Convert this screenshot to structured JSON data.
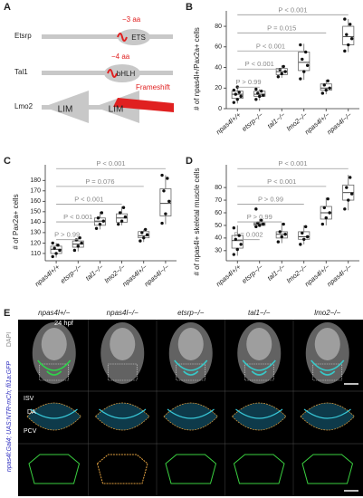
{
  "panel_a": {
    "label": "A",
    "genes": [
      {
        "name": "Etsrp",
        "domains": [
          "ETS"
        ],
        "mutation": "−3 aa"
      },
      {
        "name": "Tal1",
        "domains": [
          "bHLH"
        ],
        "mutation": "−4 aa"
      },
      {
        "name": "Lmo2",
        "domains": [
          "LIM",
          "LIM"
        ],
        "mutation": "Frameshift"
      }
    ]
  },
  "chart_data": [
    {
      "type": "box",
      "panel": "B",
      "y_label": "# of npas4l+/Pax2a+ cells",
      "categories": [
        "npas4l+/+",
        "etsrp−/−",
        "tal1−/−",
        "lmo2−/−",
        "npas4l+/−",
        "npas4l−/−"
      ],
      "boxes": [
        {
          "min": 5,
          "q1": 10,
          "median": 14,
          "q3": 17,
          "max": 22,
          "points": [
            6,
            9,
            12,
            14,
            16,
            18,
            21
          ]
        },
        {
          "min": 8,
          "q1": 12,
          "median": 14,
          "q3": 17,
          "max": 19,
          "points": [
            9,
            12,
            13,
            15,
            17,
            19
          ]
        },
        {
          "min": 30,
          "q1": 33,
          "median": 36,
          "q3": 39,
          "max": 42,
          "points": [
            31,
            34,
            36,
            38,
            41
          ]
        },
        {
          "min": 28,
          "q1": 37,
          "median": 45,
          "q3": 55,
          "max": 63,
          "points": [
            29,
            36,
            42,
            48,
            55,
            62
          ]
        },
        {
          "min": 14,
          "q1": 18,
          "median": 20,
          "q3": 24,
          "max": 28,
          "points": [
            15,
            18,
            20,
            23,
            27
          ]
        },
        {
          "min": 55,
          "q1": 62,
          "median": 70,
          "q3": 80,
          "max": 87,
          "points": [
            56,
            62,
            68,
            72,
            82,
            87
          ]
        }
      ],
      "ylim": [
        0,
        95
      ],
      "yticks": [
        0,
        20,
        40,
        60,
        80
      ],
      "annotations": [
        "P > 0.99",
        "P < 0.001",
        "P < 0.001",
        "P = 0.015",
        "P < 0.001"
      ]
    },
    {
      "type": "box",
      "panel": "C",
      "y_label": "# of Pax2a+ cells",
      "categories": [
        "npas4l+/+",
        "etsrp−/−",
        "tal1−/−",
        "lmo2−/−",
        "npas4l+/−",
        "npas4l−/−"
      ],
      "boxes": [
        {
          "min": 106,
          "q1": 110,
          "median": 114,
          "q3": 117,
          "max": 120,
          "points": [
            107,
            110,
            113,
            115,
            118,
            120
          ]
        },
        {
          "min": 112,
          "q1": 116,
          "median": 119,
          "q3": 122,
          "max": 125,
          "points": [
            113,
            117,
            120,
            123,
            125
          ]
        },
        {
          "min": 133,
          "q1": 137,
          "median": 141,
          "q3": 144,
          "max": 150,
          "points": [
            134,
            138,
            141,
            144,
            149
          ]
        },
        {
          "min": 137,
          "q1": 140,
          "median": 144,
          "q3": 148,
          "max": 155,
          "points": [
            138,
            141,
            145,
            149,
            154
          ]
        },
        {
          "min": 121,
          "q1": 125,
          "median": 127,
          "q3": 131,
          "max": 133,
          "points": [
            122,
            125,
            128,
            130,
            133
          ]
        },
        {
          "min": 138,
          "q1": 146,
          "median": 158,
          "q3": 172,
          "max": 185,
          "points": [
            139,
            148,
            160,
            170,
            182,
            185
          ]
        }
      ],
      "ylim": [
        103,
        195
      ],
      "yticks": [
        110,
        120,
        130,
        140,
        150,
        160,
        170,
        180
      ],
      "annotations": [
        "P > 0.99",
        "P < 0.001",
        "P < 0.001",
        "P = 0.076",
        "P < 0.001"
      ]
    },
    {
      "type": "box",
      "panel": "D",
      "y_label": "# of npas4l+ skeletal muscle cells",
      "categories": [
        "npas4l+/+",
        "etsrp−/−",
        "tal1−/−",
        "lmo2−/−",
        "npas4l+/−",
        "npas4l−/−"
      ],
      "boxes": [
        {
          "min": 26,
          "q1": 32,
          "median": 38,
          "q3": 42,
          "max": 50,
          "points": [
            27,
            31,
            35,
            39,
            42,
            48
          ]
        },
        {
          "min": 49,
          "q1": 50,
          "median": 51,
          "q3": 52,
          "max": 55,
          "points": [
            49,
            50,
            51,
            52,
            54,
            63
          ]
        },
        {
          "min": 36,
          "q1": 40,
          "median": 43,
          "q3": 45,
          "max": 52,
          "points": [
            37,
            41,
            43,
            45,
            51
          ]
        },
        {
          "min": 35,
          "q1": 39,
          "median": 41,
          "q3": 45,
          "max": 50,
          "points": [
            35,
            39,
            41,
            44,
            49
          ]
        },
        {
          "min": 50,
          "q1": 55,
          "median": 60,
          "q3": 65,
          "max": 72,
          "points": [
            51,
            56,
            60,
            64,
            71
          ]
        },
        {
          "min": 62,
          "q1": 70,
          "median": 76,
          "q3": 82,
          "max": 90,
          "points": [
            63,
            70,
            75,
            80,
            88
          ]
        }
      ],
      "ylim": [
        22,
        98
      ],
      "yticks": [
        30,
        40,
        50,
        60,
        70,
        80
      ],
      "annotations": [
        "P = 0.002",
        "P > 0.99",
        "P > 0.99",
        "P < 0.001",
        "P < 0.001"
      ]
    }
  ],
  "panel_e": {
    "label": "E",
    "columns": [
      "npas4l+/−",
      "npas4l−/−",
      "etsrp−/−",
      "tal1−/−",
      "lmo2−/−"
    ],
    "stage": "24 hpf",
    "row_label_dapi": "DAPI",
    "row_label_reporter": "npas4l:Gal4; UAS:NTR-mCh; fli1a:GFP",
    "vessels": [
      "ISV",
      "DA",
      "PCV"
    ]
  }
}
